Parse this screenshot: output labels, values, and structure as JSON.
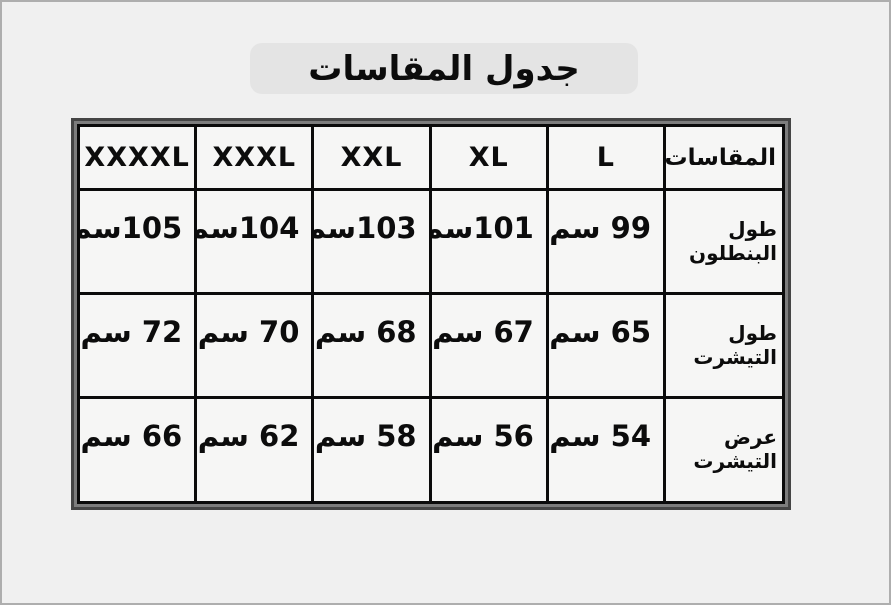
{
  "title": "جدول المقاسات",
  "table": {
    "corner_header": "المقاسات",
    "size_headers": [
      "L",
      "XL",
      "XXL",
      "XXXL",
      "XXXXL"
    ],
    "rows": [
      {
        "label": "طول البنطلون",
        "display": [
          "99 سم",
          "101سم",
          "103سم",
          "104سم",
          "105سم"
        ]
      },
      {
        "label": "طول التيشرت",
        "display": [
          "65 سم",
          "67 سم",
          "68 سم",
          "70 سم",
          "72 سم"
        ]
      },
      {
        "label": "عرض التيشرت",
        "display": [
          "54 سم",
          "56 سم",
          "58 سم",
          "62 سم",
          "66 سم"
        ]
      }
    ]
  },
  "chart_data": {
    "type": "table",
    "title": "جدول المقاسات",
    "direction": "rtl",
    "columns": [
      "المقاسات",
      "L",
      "XL",
      "XXL",
      "XXXL",
      "XXXXL"
    ],
    "unit": "سم",
    "rows": [
      {
        "label": "طول البنطلون",
        "values_cm": [
          99,
          101,
          103,
          104,
          105
        ]
      },
      {
        "label": "طول التيشرت",
        "values_cm": [
          65,
          67,
          68,
          70,
          72
        ]
      },
      {
        "label": "عرض التيشرت",
        "values_cm": [
          54,
          56,
          58,
          62,
          66
        ]
      }
    ]
  },
  "colors": {
    "page_background": "#f0f0f0",
    "page_border": "#aeaeae",
    "title_pill_background": "#e4e4e4",
    "cell_background": "#f6f6f5",
    "gridline": "#0b0b0b",
    "frame_band": "#7d7d7d",
    "frame_outer": "#454545",
    "text": "#0c0c0c"
  }
}
